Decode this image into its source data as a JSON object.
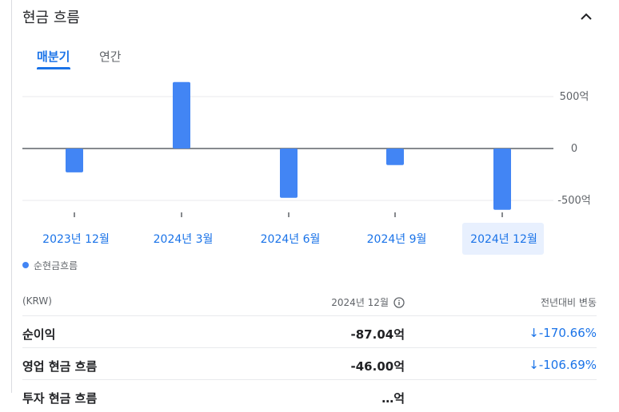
{
  "header": {
    "title": "현금 흐름"
  },
  "tabs": [
    {
      "label": "매분기",
      "active": true
    },
    {
      "label": "연간",
      "active": false
    }
  ],
  "colors": {
    "accent": "#1a73e8",
    "bar": "#4285f4",
    "axis": "#5f6368"
  },
  "chart_data": {
    "type": "bar",
    "categories": [
      "2023년 12월",
      "2024년 3월",
      "2024년 6월",
      "2024년 9월",
      "2024년 12월"
    ],
    "series": [
      {
        "name": "순현금흐름",
        "values": [
          -230,
          640,
          -475,
          -160,
          -590
        ]
      }
    ],
    "yticks": [
      500,
      0,
      -500
    ],
    "ytick_labels": [
      "500억",
      "0",
      "-500억"
    ],
    "ylim": [
      -600,
      650
    ],
    "selected_index": 4
  },
  "legend": {
    "label": "순현금흐름"
  },
  "table": {
    "headers": [
      "(KRW)",
      "2024년 12월",
      "전년대비 변동"
    ],
    "rows": [
      {
        "label": "순이익",
        "value": "-87.04억",
        "change": "-170.66%"
      },
      {
        "label": "영업 현금 흐름",
        "value": "-46.00억",
        "change": "-106.69%"
      },
      {
        "label": "투자 현금 흐름",
        "value": "…억",
        "change": ""
      }
    ]
  }
}
